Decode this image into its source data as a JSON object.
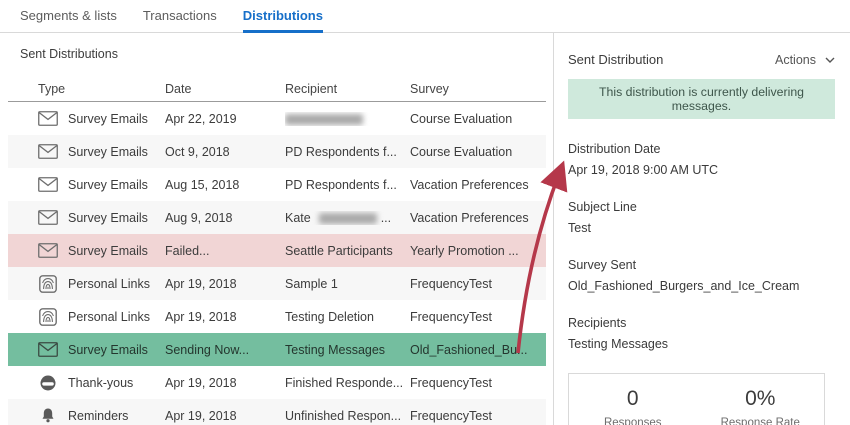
{
  "tabs": [
    {
      "label": "Segments & lists",
      "active": false
    },
    {
      "label": "Transactions",
      "active": false
    },
    {
      "label": "Distributions",
      "active": true
    }
  ],
  "left": {
    "title": "Sent Distributions",
    "columns": [
      "Type",
      "Date",
      "Recipient",
      "Survey"
    ],
    "rows": [
      {
        "icon": "envelope",
        "type": "Survey Emails",
        "date": "Apr 22, 2019",
        "recipient": "",
        "redaction": "full",
        "survey": "Course Evaluation",
        "variant": "white"
      },
      {
        "icon": "envelope",
        "type": "Survey Emails",
        "date": "Oct 9, 2018",
        "recipient": "PD Respondents f...",
        "survey": "Course Evaluation",
        "variant": "stripe"
      },
      {
        "icon": "envelope",
        "type": "Survey Emails",
        "date": "Aug 15, 2018",
        "recipient": "PD Respondents f...",
        "survey": "Vacation Preferences",
        "variant": "white"
      },
      {
        "icon": "envelope",
        "type": "Survey Emails",
        "date": "Aug 9, 2018",
        "recipient": "Kate",
        "redaction": "partial",
        "redaction_suffix": "...",
        "survey": "Vacation Preferences",
        "variant": "stripe"
      },
      {
        "icon": "envelope",
        "type": "Survey Emails",
        "date": "Failed...",
        "recipient": "Seattle Participants",
        "survey": "Yearly Promotion ...",
        "variant": "failed"
      },
      {
        "icon": "fingerprint",
        "type": "Personal Links",
        "date": "Apr 19, 2018",
        "recipient": "Sample 1",
        "survey": "FrequencyTest",
        "variant": "stripe"
      },
      {
        "icon": "fingerprint",
        "type": "Personal Links",
        "date": "Apr 19, 2018",
        "recipient": "Testing Deletion",
        "survey": "FrequencyTest",
        "variant": "white"
      },
      {
        "icon": "envelope",
        "type": "Survey Emails",
        "date": "Sending Now...",
        "recipient": "Testing Messages",
        "survey": "Old_Fashioned_Bu...",
        "variant": "sending"
      },
      {
        "icon": "thankyou",
        "type": "Thank-yous",
        "date": "Apr 19, 2018",
        "recipient": "Finished Responde...",
        "survey": "FrequencyTest",
        "variant": "white"
      },
      {
        "icon": "bell",
        "type": "Reminders",
        "date": "Apr 19, 2018",
        "recipient": "Unfinished Respon...",
        "survey": "FrequencyTest",
        "variant": "stripe"
      }
    ]
  },
  "right": {
    "title": "Sent Distribution",
    "actions_label": "Actions",
    "notice": "This distribution is currently delivering messages.",
    "fields": [
      {
        "label": "Distribution Date",
        "value": "Apr 19, 2018 9:00 AM UTC"
      },
      {
        "label": "Subject Line",
        "value": "Test"
      },
      {
        "label": "Survey Sent",
        "value": "Old_Fashioned_Burgers_and_Ice_Cream"
      },
      {
        "label": "Recipients",
        "value": "Testing Messages"
      }
    ],
    "stats": [
      {
        "value": "0",
        "label": "Responses"
      },
      {
        "value": "0%",
        "label": "Response Rate"
      }
    ]
  },
  "colors": {
    "accent_blue": "#166fc9",
    "sending_green": "#74be9f",
    "failed_pink": "#f1d5d5",
    "notice_green_bg": "#cfe9dc",
    "arrow_red": "#b5384a"
  }
}
